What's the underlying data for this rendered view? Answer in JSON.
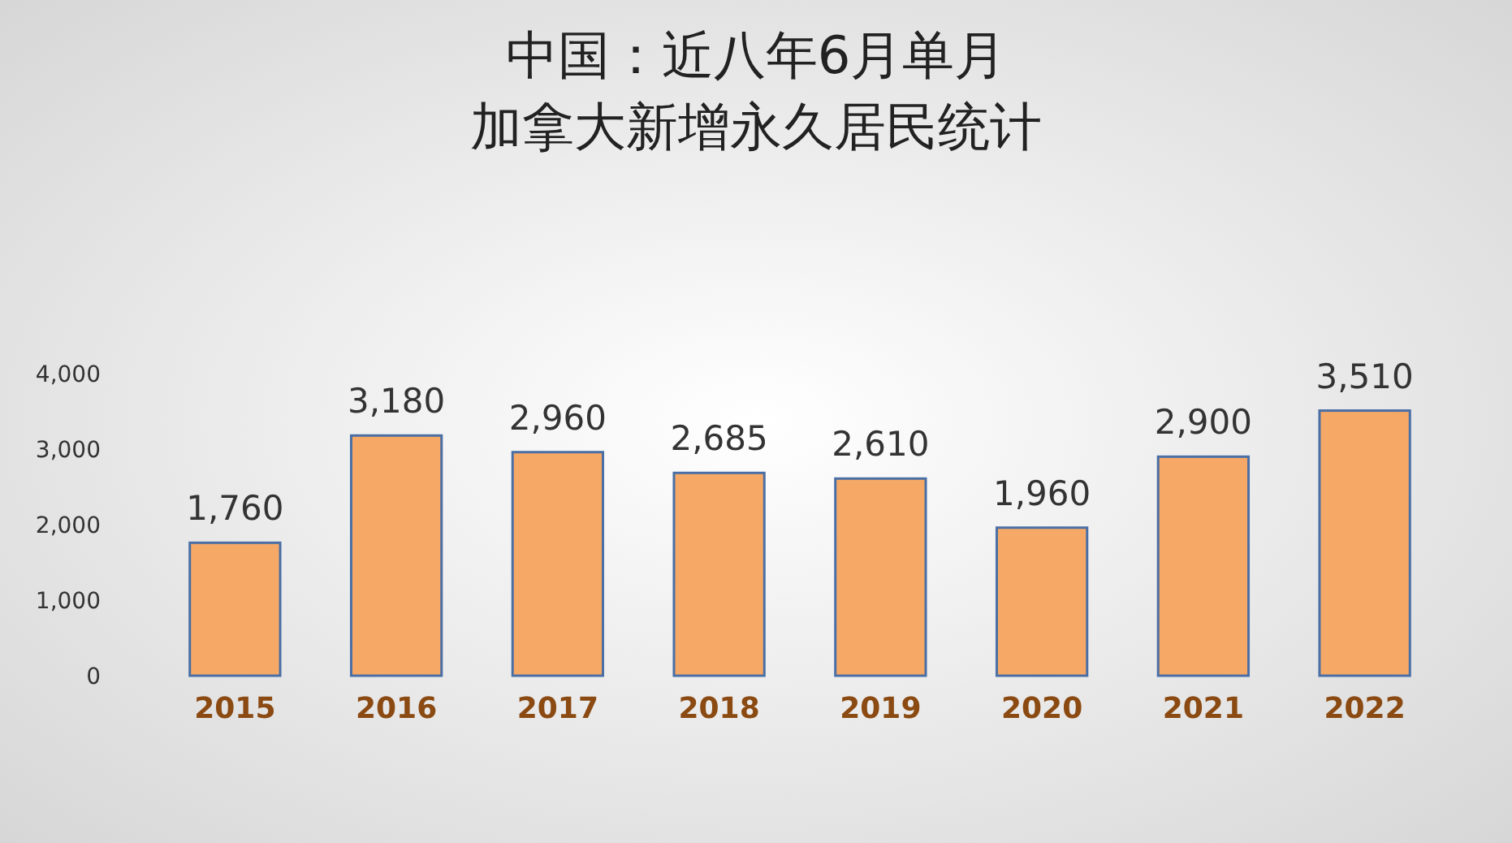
{
  "chart_data": {
    "type": "bar",
    "title": "中国：近八年6月单月",
    "subtitle": "加拿大新增永久居民统计",
    "categories": [
      "2015",
      "2016",
      "2017",
      "2018",
      "2019",
      "2020",
      "2021",
      "2022"
    ],
    "values": [
      1760,
      3180,
      2960,
      2685,
      2610,
      1960,
      2900,
      3510
    ],
    "color": "#f6a866",
    "ylim": [
      0,
      4000
    ],
    "yticks": [
      {
        "value": 0,
        "label": "0"
      },
      {
        "value": 1000,
        "label": "1,000"
      },
      {
        "value": 2000,
        "label": "2,000"
      },
      {
        "value": 3000,
        "label": "3,000"
      },
      {
        "value": 4000,
        "label": "4,000"
      }
    ],
    "value_labels": [
      "1,760",
      "3,180",
      "2,960",
      "2,685",
      "2,610",
      "1,960",
      "2,900",
      "3,510"
    ]
  }
}
